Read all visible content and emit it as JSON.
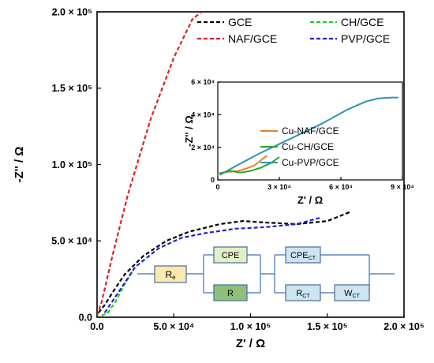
{
  "chart_data": [
    {
      "type": "line",
      "xlabel": "Z' / Ω",
      "ylabel": "-Z'' / Ω",
      "xlim": [
        0,
        200000
      ],
      "ylim": [
        0,
        200000
      ],
      "x_ticks": [
        {
          "value": 0,
          "label": "0.0"
        },
        {
          "value": 50000,
          "label": "5.0 × 10⁴"
        },
        {
          "value": 100000,
          "label": "1.0 × 10⁵"
        },
        {
          "value": 150000,
          "label": "1.5 × 10⁵"
        },
        {
          "value": 200000,
          "label": "2.0 × 10⁵"
        }
      ],
      "y_ticks": [
        {
          "value": 0,
          "label": "0.0"
        },
        {
          "value": 50000,
          "label": "5.0 × 10⁴"
        },
        {
          "value": 100000,
          "label": "1.0 × 10⁵"
        },
        {
          "value": 150000,
          "label": "1.5 × 10⁵"
        },
        {
          "value": 200000,
          "label": "2.0 × 10⁵"
        }
      ],
      "legend_position": "top-right",
      "series": [
        {
          "name": "GCE",
          "color": "#000000",
          "line_style": "dashed",
          "x": [
            1000,
            5000,
            10000,
            18000,
            30000,
            45000,
            60000,
            80000,
            95000,
            110000,
            130000,
            150000,
            165000
          ],
          "y": [
            3000,
            8000,
            16000,
            28000,
            40000,
            50000,
            56000,
            61000,
            63000,
            62000,
            61000,
            63000,
            69000
          ]
        },
        {
          "name": "CH/GCE",
          "color": "#22cc22",
          "line_style": "dashed",
          "x": [
            3000,
            7000,
            12000,
            17000,
            23000
          ],
          "y": [
            1000,
            3000,
            10000,
            20000,
            30000
          ]
        },
        {
          "name": "NAF/GCE",
          "color": "#e02020",
          "line_style": "dashed",
          "x": [
            0,
            3000,
            10000,
            20000,
            35000,
            50000,
            62000,
            68000
          ],
          "y": [
            1000,
            10000,
            40000,
            80000,
            130000,
            170000,
            195000,
            200000
          ]
        },
        {
          "name": "PVP/GCE",
          "color": "#2020cc",
          "line_style": "dashed",
          "x": [
            5000,
            15000,
            25000,
            40000,
            55000,
            70000,
            90000,
            110000,
            130000,
            145000
          ],
          "y": [
            3000,
            18000,
            33000,
            45000,
            52000,
            55000,
            58000,
            59000,
            61000,
            65000
          ]
        }
      ]
    },
    {
      "type": "line",
      "xlabel": "Z' / Ω",
      "ylabel": "-Z'' / Ω",
      "xlim": [
        0,
        90000
      ],
      "ylim": [
        0,
        60000
      ],
      "x_ticks": [
        {
          "value": 0,
          "label": "0"
        },
        {
          "value": 30000,
          "label": "3 × 10⁴"
        },
        {
          "value": 60000,
          "label": "6 × 10⁴"
        },
        {
          "value": 90000,
          "label": "9 × 10⁴"
        }
      ],
      "y_ticks": [
        {
          "value": 0,
          "label": "0"
        },
        {
          "value": 20000,
          "label": "2 × 10⁴"
        },
        {
          "value": 40000,
          "label": "4 × 10⁴"
        },
        {
          "value": 60000,
          "label": "6 × 10⁴"
        }
      ],
      "legend_position": "center-right",
      "series": [
        {
          "name": "Cu-NAF/GCE",
          "color": "#f08020",
          "line_style": "solid",
          "x": [
            0,
            5000,
            10000,
            14000,
            18000,
            21000,
            24000
          ],
          "y": [
            4000,
            5000,
            5500,
            7000,
            9000,
            12000,
            15000
          ]
        },
        {
          "name": "Cu-CH/GCE",
          "color": "#22aa22",
          "line_style": "solid",
          "x": [
            1000,
            6000,
            11000,
            16000,
            21000,
            26000,
            30000
          ],
          "y": [
            4000,
            5500,
            4500,
            5500,
            7500,
            10500,
            14000
          ]
        },
        {
          "name": "Cu-PVP/GCE",
          "color": "#2e93b0",
          "line_style": "solid",
          "x": [
            1000,
            8000,
            20000,
            35000,
            50000,
            63000,
            72000,
            78000,
            85000,
            88000
          ],
          "y": [
            3000,
            8000,
            16000,
            25000,
            34000,
            43000,
            48000,
            50000,
            50500,
            50500
          ]
        }
      ]
    }
  ],
  "circuit": {
    "re_label": "R",
    "re_sub": "e",
    "cpe_label": "CPE",
    "r_label": "R",
    "cpect_label": "CPE",
    "cpect_sub": "CT",
    "rct_label": "R",
    "rct_sub": "CT",
    "wct_label": "W",
    "wct_sub": "CT"
  }
}
